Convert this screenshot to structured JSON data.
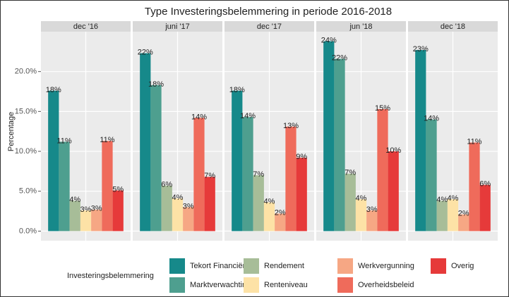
{
  "chart_data": {
    "type": "bar",
    "title": "Type Investeringsbelemmering in periode 2016-2018",
    "y_label": "Percentage",
    "legend_title": "Investeringsbelemmering",
    "categories": [
      "dec '16",
      "juni '17",
      "dec '17",
      "jun '18",
      "dec '18"
    ],
    "series": [
      {
        "name": "Tekort Financiën",
        "color": "#16898a",
        "values": [
          17.6,
          22.3,
          17.6,
          23.8,
          22.7
        ],
        "value_labels": [
          "18%",
          "22%",
          "18%",
          "24%",
          "23%"
        ]
      },
      {
        "name": "Marktverwachting",
        "color": "#4e9f8f",
        "values": [
          11.2,
          18.3,
          14.3,
          21.6,
          14.0
        ],
        "value_labels": [
          "11%",
          "18%",
          "14%",
          "22%",
          "14%"
        ]
      },
      {
        "name": "Rendement",
        "color": "#a7bd98",
        "values": [
          3.8,
          5.7,
          7.0,
          7.2,
          3.8
        ],
        "value_labels": [
          "4%",
          "6%",
          "7%",
          "7%",
          "4%"
        ]
      },
      {
        "name": "Renteniveau",
        "color": "#fde2a6",
        "values": [
          2.6,
          4.1,
          3.6,
          4.0,
          4.0
        ],
        "value_labels": [
          "3%",
          "4%",
          "4%",
          "4%",
          "4%"
        ]
      },
      {
        "name": "Werkvergunning",
        "color": "#f6a784",
        "values": [
          2.7,
          3.0,
          2.2,
          2.6,
          2.1
        ],
        "value_labels": [
          "3%",
          "3%",
          "2%",
          "3%",
          "2%"
        ]
      },
      {
        "name": "Overheidsbeleid",
        "color": "#ef6b5b",
        "values": [
          11.3,
          14.2,
          13.1,
          15.3,
          11.1
        ],
        "value_labels": [
          "11%",
          "14%",
          "13%",
          "15%",
          "11%"
        ]
      },
      {
        "name": "Overig",
        "color": "#e63a3a",
        "values": [
          5.1,
          6.8,
          9.2,
          10.0,
          5.8
        ],
        "value_labels": [
          "5%",
          "7%",
          "9%",
          "10%",
          "6%"
        ]
      }
    ],
    "ylim": [
      -1.2,
      25
    ],
    "yticks": [
      {
        "value": 0,
        "label": "0.0%"
      },
      {
        "value": 5,
        "label": "5.0%"
      },
      {
        "value": 10,
        "label": "10.0%"
      },
      {
        "value": 15,
        "label": "15.0%"
      },
      {
        "value": 20,
        "label": "20.0%"
      }
    ],
    "grid": true
  }
}
